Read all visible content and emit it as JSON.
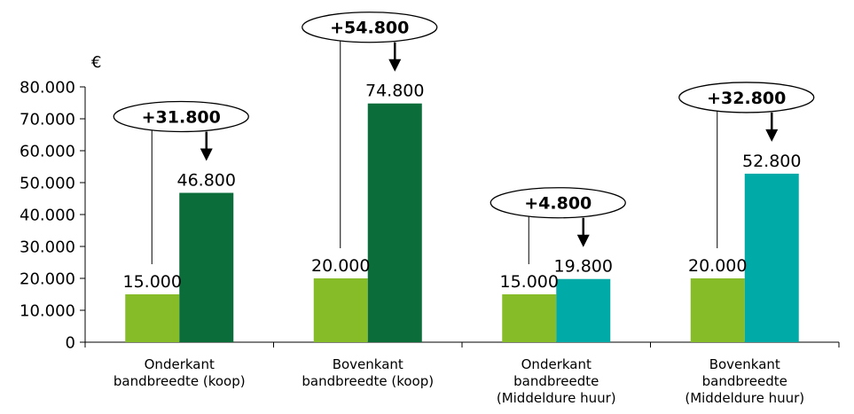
{
  "chart_data": {
    "type": "bar",
    "y_unit": "€",
    "ylim": [
      0,
      80000
    ],
    "y_ticks": [
      "0",
      "10.000",
      "20.000",
      "30.000",
      "40.000",
      "50.000",
      "60.000",
      "70.000",
      "80.000"
    ],
    "grid": false,
    "legend": "none",
    "categories": [
      [
        "Onderkant",
        "bandbreedte (koop)"
      ],
      [
        "Bovenkant",
        "bandbreedte (koop)"
      ],
      [
        "Onderkant",
        "bandbreedte",
        "(Middeldure huur)"
      ],
      [
        "Bovenkant",
        "bandbreedte",
        "(Middeldure huur)"
      ]
    ],
    "bars": [
      {
        "category": 0,
        "pos": 0,
        "value": 15000,
        "label": "15.000",
        "color": "#85bc28"
      },
      {
        "category": 0,
        "pos": 1,
        "value": 46800,
        "label": "46.800",
        "color": "#0b6e3a"
      },
      {
        "category": 1,
        "pos": 0,
        "value": 20000,
        "label": "20.000",
        "color": "#85bc28"
      },
      {
        "category": 1,
        "pos": 1,
        "value": 74800,
        "label": "74.800",
        "color": "#0b6e3a"
      },
      {
        "category": 2,
        "pos": 0,
        "value": 15000,
        "label": "15.000",
        "color": "#85bc28"
      },
      {
        "category": 2,
        "pos": 1,
        "value": 19800,
        "label": "19.800",
        "color": "#00aaa6"
      },
      {
        "category": 3,
        "pos": 0,
        "value": 20000,
        "label": "20.000",
        "color": "#85bc28"
      },
      {
        "category": 3,
        "pos": 1,
        "value": 52800,
        "label": "52.800",
        "color": "#00aaa6"
      }
    ],
    "annotations": [
      {
        "category": 0,
        "text": "+31.800"
      },
      {
        "category": 1,
        "text": "+54.800"
      },
      {
        "category": 2,
        "text": "+4.800"
      },
      {
        "category": 3,
        "text": "+32.800"
      }
    ]
  }
}
